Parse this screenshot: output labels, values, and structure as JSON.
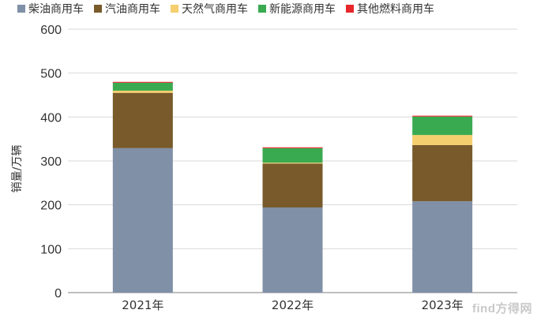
{
  "chart_data": {
    "type": "bar",
    "stacked": true,
    "categories": [
      "2021年",
      "2022年",
      "2023年"
    ],
    "series": [
      {
        "name": "柴油商用车",
        "color": "#7f90a7",
        "values": [
          329,
          194,
          208
        ]
      },
      {
        "name": "汽油商用车",
        "color": "#785a2b",
        "values": [
          126,
          100,
          128
        ]
      },
      {
        "name": "天然气商用车",
        "color": "#f5cf6d",
        "values": [
          5,
          2,
          23
        ]
      },
      {
        "name": "新能源商用车",
        "color": "#3aaa50",
        "values": [
          18,
          33,
          42
        ]
      },
      {
        "name": "其他燃料商用车",
        "color": "#e8272d",
        "values": [
          2,
          2,
          2
        ]
      }
    ],
    "ylabel": "销量/万辆",
    "ylim": [
      0,
      600
    ],
    "yticks": [
      0,
      100,
      200,
      300,
      400,
      500,
      600
    ],
    "grid": true,
    "legend": "top"
  },
  "watermark": "find方得网"
}
